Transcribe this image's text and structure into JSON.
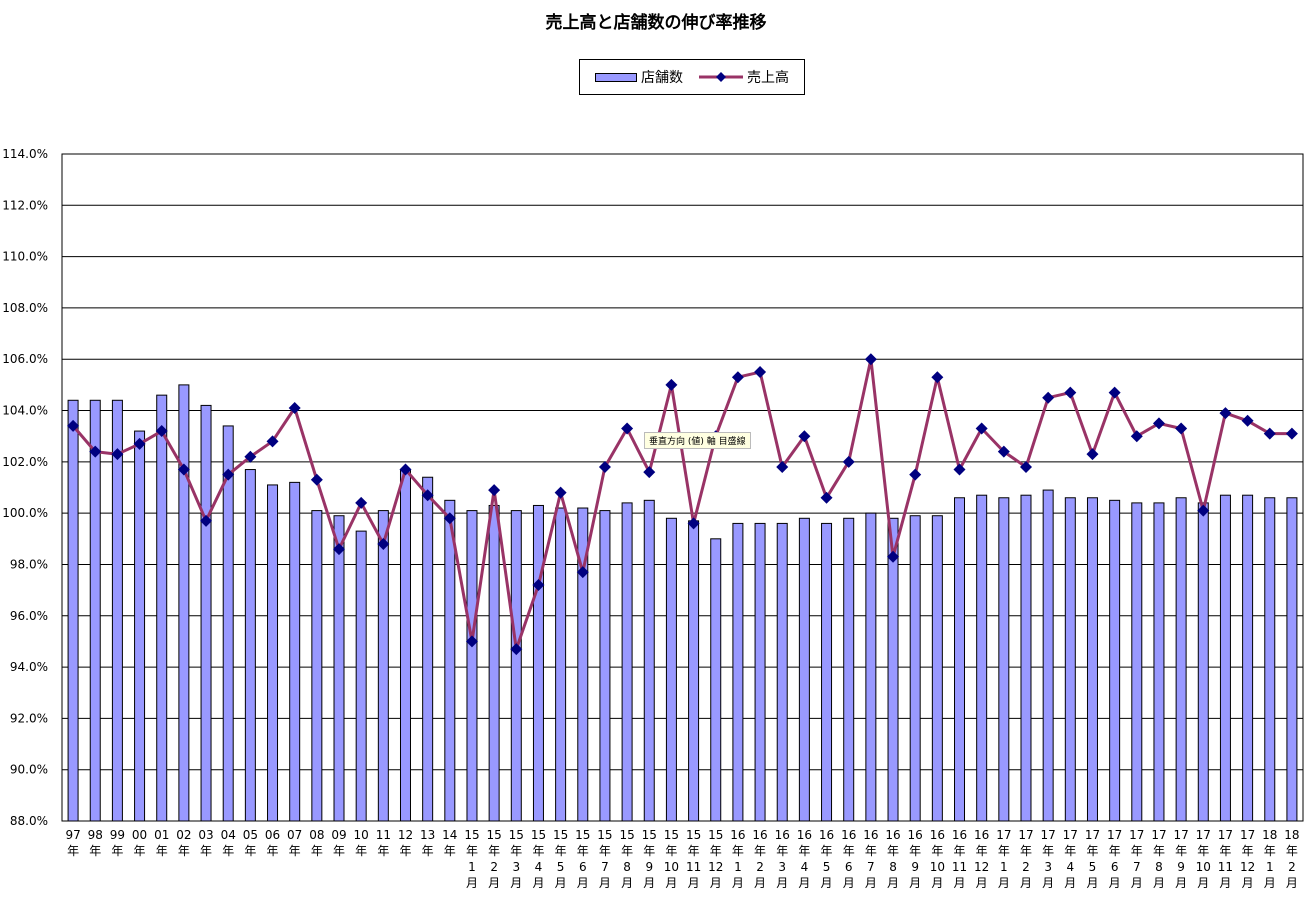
{
  "chart_data": {
    "type": "bar",
    "title": "売上高と店舗数の伸び率推移",
    "xlabel": "",
    "ylabel": "",
    "ylim": [
      88.0,
      114.0
    ],
    "yticks": [
      "114.0%",
      "112.0%",
      "110.0%",
      "108.0%",
      "106.0%",
      "104.0%",
      "102.0%",
      "100.0%",
      "98.0%",
      "96.0%",
      "94.0%",
      "92.0%",
      "90.0%",
      "88.0%"
    ],
    "grid": true,
    "legend_position": "top-center",
    "categories": [
      [
        "97",
        "年"
      ],
      [
        "98",
        "年"
      ],
      [
        "99",
        "年"
      ],
      [
        "00",
        "年"
      ],
      [
        "01",
        "年"
      ],
      [
        "02",
        "年"
      ],
      [
        "03",
        "年"
      ],
      [
        "04",
        "年"
      ],
      [
        "05",
        "年"
      ],
      [
        "06",
        "年"
      ],
      [
        "07",
        "年"
      ],
      [
        "08",
        "年"
      ],
      [
        "09",
        "年"
      ],
      [
        "10",
        "年"
      ],
      [
        "11",
        "年"
      ],
      [
        "12",
        "年"
      ],
      [
        "13",
        "年"
      ],
      [
        "14",
        "年"
      ],
      [
        "15",
        "年",
        "1",
        "月"
      ],
      [
        "15",
        "年",
        "2",
        "月"
      ],
      [
        "15",
        "年",
        "3",
        "月"
      ],
      [
        "15",
        "年",
        "4",
        "月"
      ],
      [
        "15",
        "年",
        "5",
        "月"
      ],
      [
        "15",
        "年",
        "6",
        "月"
      ],
      [
        "15",
        "年",
        "7",
        "月"
      ],
      [
        "15",
        "年",
        "8",
        "月"
      ],
      [
        "15",
        "年",
        "9",
        "月"
      ],
      [
        "15",
        "年",
        "10",
        "月"
      ],
      [
        "15",
        "年",
        "11",
        "月"
      ],
      [
        "15",
        "年",
        "12",
        "月"
      ],
      [
        "16",
        "年",
        "1",
        "月"
      ],
      [
        "16",
        "年",
        "2",
        "月"
      ],
      [
        "16",
        "年",
        "3",
        "月"
      ],
      [
        "16",
        "年",
        "4",
        "月"
      ],
      [
        "16",
        "年",
        "5",
        "月"
      ],
      [
        "16",
        "年",
        "6",
        "月"
      ],
      [
        "16",
        "年",
        "7",
        "月"
      ],
      [
        "16",
        "年",
        "8",
        "月"
      ],
      [
        "16",
        "年",
        "9",
        "月"
      ],
      [
        "16",
        "年",
        "10",
        "月"
      ],
      [
        "16",
        "年",
        "11",
        "月"
      ],
      [
        "16",
        "年",
        "12",
        "月"
      ],
      [
        "17",
        "年",
        "1",
        "月"
      ],
      [
        "17",
        "年",
        "2",
        "月"
      ],
      [
        "17",
        "年",
        "3",
        "月"
      ],
      [
        "17",
        "年",
        "4",
        "月"
      ],
      [
        "17",
        "年",
        "5",
        "月"
      ],
      [
        "17",
        "年",
        "6",
        "月"
      ],
      [
        "17",
        "年",
        "7",
        "月"
      ],
      [
        "17",
        "年",
        "8",
        "月"
      ],
      [
        "17",
        "年",
        "9",
        "月"
      ],
      [
        "17",
        "年",
        "10",
        "月"
      ],
      [
        "17",
        "年",
        "11",
        "月"
      ],
      [
        "17",
        "年",
        "12",
        "月"
      ],
      [
        "18",
        "年",
        "1",
        "月"
      ],
      [
        "18",
        "年",
        "2",
        "月"
      ]
    ],
    "series": [
      {
        "name": "店舗数",
        "type": "bar",
        "color": "#9999ff",
        "values": [
          104.4,
          104.4,
          104.4,
          103.2,
          104.6,
          105.0,
          104.2,
          103.4,
          101.7,
          101.1,
          101.2,
          100.1,
          99.9,
          99.3,
          100.1,
          101.7,
          101.4,
          100.5,
          100.1,
          100.3,
          100.1,
          100.3,
          100.2,
          100.2,
          100.1,
          100.4,
          100.5,
          99.8,
          99.7,
          99.0,
          99.6,
          99.6,
          99.6,
          99.8,
          99.6,
          99.8,
          100.0,
          99.8,
          99.9,
          99.9,
          100.6,
          100.7,
          100.6,
          100.7,
          100.9,
          100.6,
          100.6,
          100.5,
          100.4,
          100.4,
          100.6,
          100.4,
          100.7,
          100.7,
          100.6,
          100.6
        ]
      },
      {
        "name": "売上高",
        "type": "line",
        "color": "#993366",
        "marker_color": "#000080",
        "values": [
          103.4,
          102.4,
          102.3,
          102.7,
          103.2,
          101.7,
          99.7,
          101.5,
          102.2,
          102.8,
          104.1,
          101.3,
          98.6,
          100.4,
          98.8,
          101.7,
          100.7,
          99.8,
          95.0,
          100.9,
          94.7,
          97.2,
          100.8,
          97.7,
          101.8,
          103.3,
          101.6,
          105.0,
          99.6,
          103.0,
          105.3,
          105.5,
          101.8,
          103.0,
          100.6,
          102.0,
          106.0,
          98.3,
          101.5,
          105.3,
          101.7,
          103.3,
          102.4,
          101.8,
          104.5,
          104.7,
          102.3,
          104.7,
          103.0,
          103.5,
          103.3,
          100.1,
          103.9,
          103.6,
          103.1,
          103.1
        ]
      }
    ]
  },
  "tooltip_text": "垂直方向 (値) 軸 目盛線",
  "colors": {
    "bar_fill": "#9999ff",
    "line": "#993366",
    "marker": "#000080",
    "grid": "#000000"
  }
}
